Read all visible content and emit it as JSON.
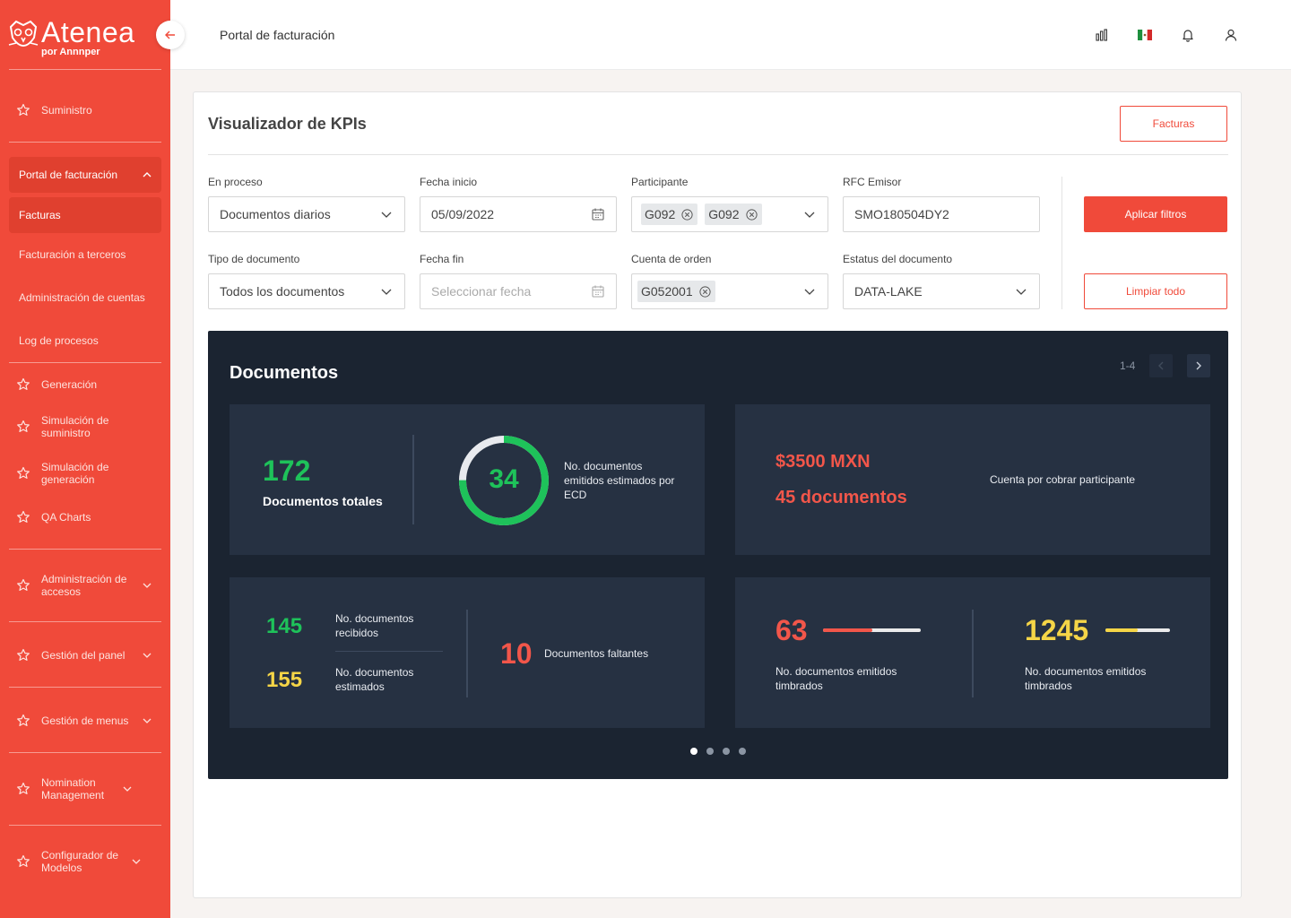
{
  "brand": {
    "name": "Atenea",
    "sub": "por Annnper"
  },
  "sidebar": {
    "items": [
      {
        "label": "Suministro"
      },
      {
        "label": "Generación"
      },
      {
        "label": "Simulación de suministro"
      },
      {
        "label": "Simulación de generación"
      },
      {
        "label": "QA Charts"
      },
      {
        "label": "Administración de accesos"
      },
      {
        "label": "Gestión del panel"
      },
      {
        "label": "Gestión de menus"
      },
      {
        "label": "Nomination Management"
      },
      {
        "label": "Configurador de Modelos"
      }
    ],
    "portal": {
      "label": "Portal de facturación",
      "children": [
        "Facturas",
        "Facturación a terceros",
        "Administración de cuentas",
        "Log de procesos"
      ]
    }
  },
  "header": {
    "title": "Portal de facturación"
  },
  "card": {
    "title": "Visualizador de KPIs",
    "facturas_button": "Facturas",
    "apply_button": "Aplicar filtros",
    "clear_button": "Limpiar todo"
  },
  "filters": {
    "en_proceso": {
      "label": "En proceso",
      "value": "Documentos diarios"
    },
    "fecha_inicio": {
      "label": "Fecha inicio",
      "value": "05/09/2022"
    },
    "participante": {
      "label": "Participante",
      "chips": [
        "G092",
        "G092"
      ]
    },
    "rfc_emisor": {
      "label": "RFC Emisor",
      "value": "SMO180504DY2"
    },
    "tipo_documento": {
      "label": "Tipo de documento",
      "value": "Todos los documentos"
    },
    "fecha_fin": {
      "label": "Fecha fin",
      "placeholder": "Seleccionar fecha"
    },
    "cuenta_orden": {
      "label": "Cuenta de orden",
      "chips": [
        "G052001"
      ]
    },
    "estatus": {
      "label": "Estatus del documento",
      "value": "DATA-LAKE"
    }
  },
  "dashboard": {
    "title": "Documentos",
    "pager": "1-4",
    "tile1": {
      "total": "172",
      "total_label": "Documentos totales",
      "ring_value": "34",
      "ring_fraction": 0.75,
      "ring_label": "No. documentos emitidos estimados por ECD"
    },
    "tile2": {
      "amount": "$3500 MXN",
      "docs": "45 documentos",
      "label": "Cuenta por cobrar participante"
    },
    "tile3": {
      "received": "145",
      "received_label": "No. documentos recibidos",
      "estimated": "155",
      "estimated_label": "No. documentos estimados",
      "missing": "10",
      "missing_label": "Documentos faltantes"
    },
    "tile4": {
      "left_value": "63",
      "left_label": "No. documentos emitidos timbrados",
      "left_fraction": 0.5,
      "right_value": "1245",
      "right_label": "No. documentos emitidos timbrados",
      "right_fraction": 0.5
    },
    "pages": 4,
    "active_page": 1
  },
  "colors": {
    "sidebar": "#f04a3a",
    "accent": "#f04a3a",
    "dark_panel": "#1b2431",
    "tile": "#263142",
    "green": "#1ec25a",
    "red": "#f2564a",
    "yellow": "#f5d547"
  },
  "icons": [
    "chart-icon",
    "mexico-flag-icon",
    "bell-icon",
    "user-icon",
    "star-icon",
    "chevron-down-icon",
    "chevron-up-icon",
    "calendar-icon",
    "close-circle-icon",
    "arrow-left-icon",
    "chevron-left-icon",
    "chevron-right-icon"
  ]
}
